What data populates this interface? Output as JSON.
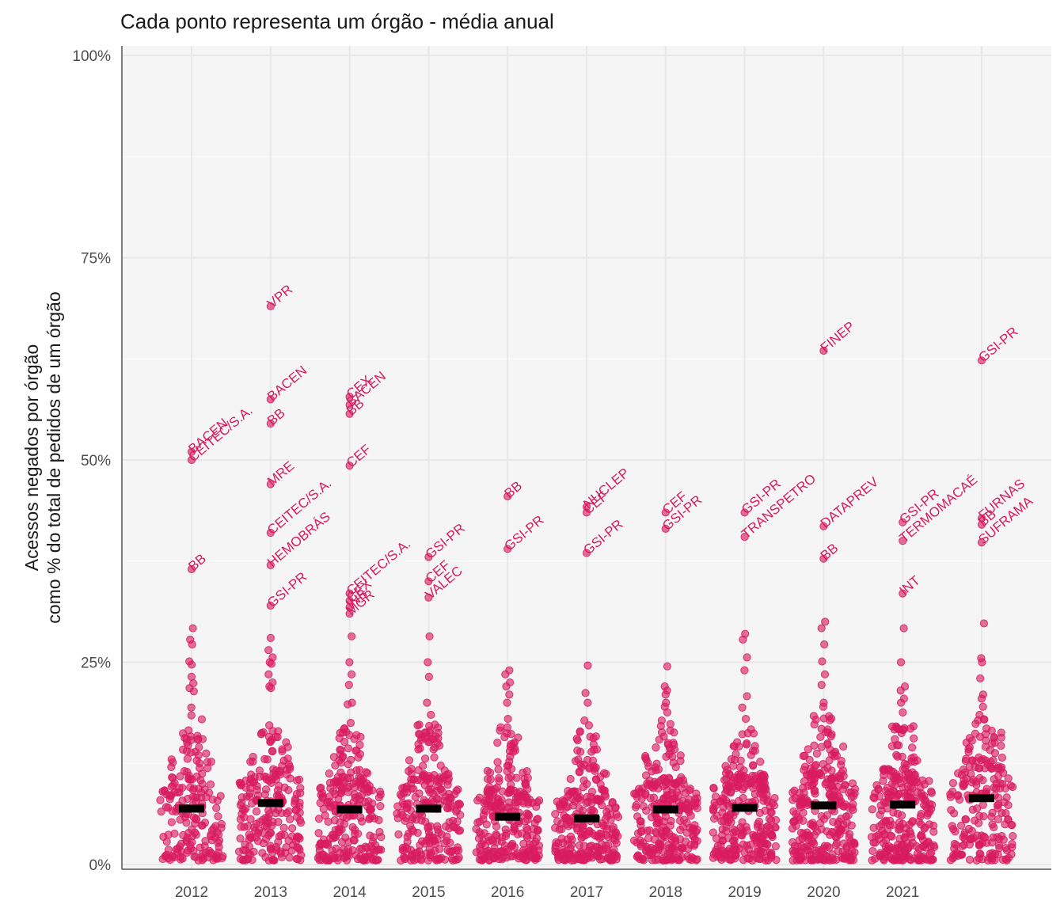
{
  "chart_data": {
    "type": "scatter",
    "subtype": "beeswarm",
    "title": "Cada ponto representa um órgão - média anual",
    "ylabel": "Acessos negados por órgão\ncomo % do total de pedidos de um órgão",
    "xlabel": "",
    "ylim": [
      0,
      100
    ],
    "ytick_labels": [
      "0%",
      "25%",
      "50%",
      "75%",
      "100%"
    ],
    "ytick_values": [
      0,
      25,
      50,
      75,
      100
    ],
    "categories": [
      "2012",
      "2013",
      "2014",
      "2015",
      "2016",
      "2017",
      "2018",
      "2019",
      "2020",
      "2021",
      ""
    ],
    "grid": true,
    "point_color": "#d81b60",
    "median_color": "#000000",
    "background_color": "#f5f5f5",
    "medians": [
      6.9,
      7.6,
      6.8,
      6.9,
      5.9,
      5.7,
      6.8,
      7.0,
      7.3,
      7.4,
      8.2
    ],
    "labeled_points": [
      {
        "year": "2012",
        "label": "BACEN",
        "value": 51.0
      },
      {
        "year": "2012",
        "label": "CEITEC/S.A.",
        "value": 50.0
      },
      {
        "year": "2012",
        "label": "BB",
        "value": 36.5
      },
      {
        "year": "2013",
        "label": "VPR",
        "value": 69.0
      },
      {
        "year": "2013",
        "label": "BACEN",
        "value": 57.5
      },
      {
        "year": "2013",
        "label": "BB",
        "value": 54.5
      },
      {
        "year": "2013",
        "label": "MRE",
        "value": 47.0
      },
      {
        "year": "2013",
        "label": "CEITEC/S.A.",
        "value": 41.0
      },
      {
        "year": "2013",
        "label": "HEMOBRÁS",
        "value": 37.0
      },
      {
        "year": "2013",
        "label": "GSI-PR",
        "value": 32.0
      },
      {
        "year": "2014",
        "label": "CEX",
        "value": 57.8
      },
      {
        "year": "2014",
        "label": "BACEN",
        "value": 56.8
      },
      {
        "year": "2014",
        "label": "BB",
        "value": 55.7
      },
      {
        "year": "2014",
        "label": "CEF",
        "value": 49.3
      },
      {
        "year": "2014",
        "label": "CEITEC/S.A.",
        "value": 33.5
      },
      {
        "year": "2014",
        "label": "CEX",
        "value": 32.6
      },
      {
        "year": "2014",
        "label": "INB",
        "value": 31.8
      },
      {
        "year": "2014",
        "label": "MGR",
        "value": 31.0
      },
      {
        "year": "2015",
        "label": "GSI-PR",
        "value": 38.0
      },
      {
        "year": "2015",
        "label": "CEF",
        "value": 35.0
      },
      {
        "year": "2015",
        "label": "VALEC",
        "value": 33.0
      },
      {
        "year": "2016",
        "label": "BB",
        "value": 45.5
      },
      {
        "year": "2016",
        "label": "GSI-PR",
        "value": 39.0
      },
      {
        "year": "2017",
        "label": "NUCLEP",
        "value": 44.2
      },
      {
        "year": "2017",
        "label": "CEF",
        "value": 43.5
      },
      {
        "year": "2017",
        "label": "GSI-PR",
        "value": 38.5
      },
      {
        "year": "2018",
        "label": "CEF",
        "value": 43.5
      },
      {
        "year": "2018",
        "label": "GSI-PR",
        "value": 41.5
      },
      {
        "year": "2019",
        "label": "GSI-PR",
        "value": 43.5
      },
      {
        "year": "2019",
        "label": "TRANSPETRO",
        "value": 40.5
      },
      {
        "year": "2020",
        "label": "FINEP",
        "value": 63.5
      },
      {
        "year": "2020",
        "label": "DATAPREV",
        "value": 41.8
      },
      {
        "year": "2020",
        "label": "BB",
        "value": 37.8
      },
      {
        "year": "2021",
        "label": "GSI-PR",
        "value": 42.3
      },
      {
        "year": "2021",
        "label": "TERMOMACAÉ",
        "value": 40.0
      },
      {
        "year": "2021",
        "label": "INT",
        "value": 33.5
      },
      {
        "year": "",
        "label": "GSI-PR",
        "value": 62.3
      },
      {
        "year": "",
        "label": "FURNAS",
        "value": 42.8
      },
      {
        "year": "",
        "label": "BB",
        "value": 42.0
      },
      {
        "year": "",
        "label": "SUFRAMA",
        "value": 39.8
      }
    ],
    "upper_points": [
      {
        "year": "2012",
        "values": [
          29.2,
          27.8,
          27.2,
          25.1,
          24.7,
          23.2,
          22.4,
          21.8,
          21.4,
          19.4
        ]
      },
      {
        "year": "2013",
        "values": [
          28.0,
          26.5,
          25.6,
          25.0,
          24.8,
          23.5,
          22.5,
          22.0,
          21.8,
          17.2
        ]
      },
      {
        "year": "2014",
        "values": [
          28.2,
          25.0,
          23.5,
          22.2,
          20.0,
          19.8,
          17.5
        ]
      },
      {
        "year": "2015",
        "values": [
          28.2,
          25.0,
          23.2,
          20.0,
          18.5
        ]
      },
      {
        "year": "2016",
        "values": [
          24.0,
          23.5,
          22.5,
          22.0,
          21.0,
          20.0,
          18.0
        ]
      },
      {
        "year": "2017",
        "values": [
          24.6,
          21.2,
          20.0,
          17.8,
          17.2
        ]
      },
      {
        "year": "2018",
        "values": [
          24.5,
          22.0,
          21.5,
          21.0,
          20.0,
          19.5,
          18.8
        ]
      },
      {
        "year": "2019",
        "values": [
          28.5,
          27.8,
          25.6,
          24.0,
          20.8,
          19.4,
          18.0
        ]
      },
      {
        "year": "2020",
        "values": [
          30.0,
          29.2,
          27.2,
          25.1,
          23.5,
          22.2,
          20.0,
          19.5
        ]
      },
      {
        "year": "2021",
        "values": [
          29.2,
          25.0,
          22.0,
          21.5,
          20.5,
          20.0,
          18.8
        ]
      },
      {
        "year": "",
        "values": [
          29.8,
          25.5,
          25.0,
          23.0,
          21.0,
          20.5,
          19.5,
          18.5
        ]
      }
    ],
    "density_bulk": [
      {
        "year": "2012",
        "count": 190,
        "max": 18.5
      },
      {
        "year": "2013",
        "count": 215,
        "max": 17.0
      },
      {
        "year": "2014",
        "count": 250,
        "max": 17.0
      },
      {
        "year": "2015",
        "count": 240,
        "max": 17.5
      },
      {
        "year": "2016",
        "count": 260,
        "max": 17.0
      },
      {
        "year": "2017",
        "count": 260,
        "max": 16.5
      },
      {
        "year": "2018",
        "count": 270,
        "max": 18.0
      },
      {
        "year": "2019",
        "count": 275,
        "max": 17.0
      },
      {
        "year": "2020",
        "count": 290,
        "max": 18.5
      },
      {
        "year": "2021",
        "count": 275,
        "max": 17.5
      },
      {
        "year": "",
        "count": 210,
        "max": 18.0
      }
    ]
  }
}
